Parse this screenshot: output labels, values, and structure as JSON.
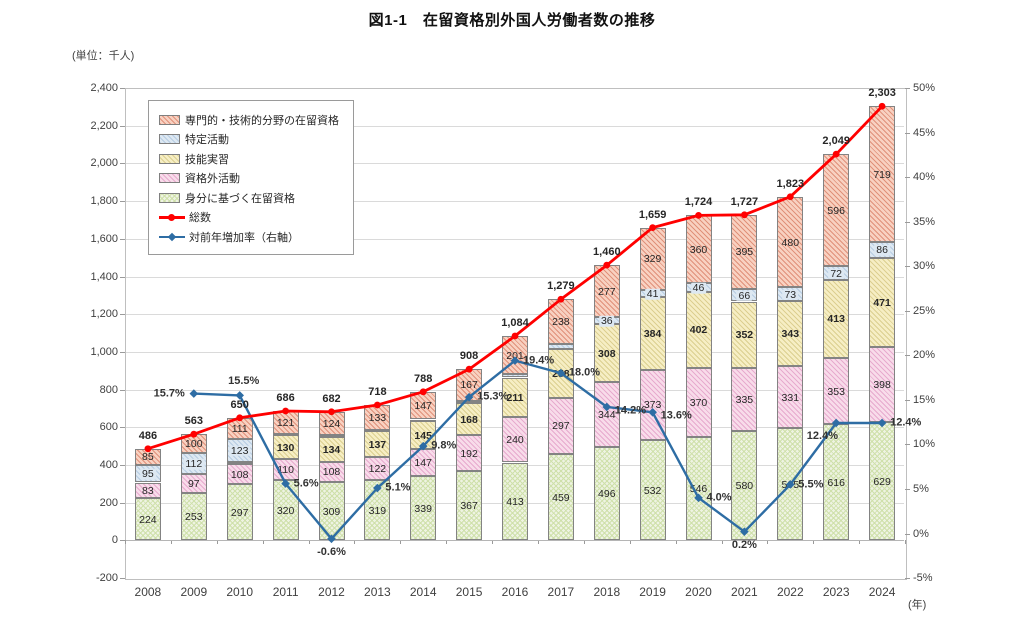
{
  "title": "図1-1　在留資格別外国人労働者数の推移",
  "legend": {
    "items": [
      {
        "key": "professional",
        "label": "専門的・技術的分野の在留資格",
        "type": "bar"
      },
      {
        "key": "designated",
        "label": "特定活動",
        "type": "bar"
      },
      {
        "key": "training",
        "label": "技能実習",
        "type": "bar"
      },
      {
        "key": "outside",
        "label": "資格外活動",
        "type": "bar"
      },
      {
        "key": "identity",
        "label": "身分に基づく在留資格",
        "type": "bar"
      },
      {
        "key": "total",
        "label": "総数",
        "type": "line"
      },
      {
        "key": "growth",
        "label": "対前年増加率（右軸）",
        "type": "line"
      }
    ]
  },
  "colors": {
    "professional_fill": "#f8d1c1",
    "professional_hatch": "#e0917a",
    "designated_fill": "#dde8f2",
    "designated_hatch": "#b7cce2",
    "training_fill": "#f6eec4",
    "training_hatch": "#dccf90",
    "outside_fill": "#f8dcea",
    "outside_hatch": "#e7abce",
    "identity_fill": "#eef3e2",
    "identity_hatch": "#cfe0ab",
    "total_line": "#ff0000",
    "growth_line": "#2e6da4",
    "grid": "#dadada",
    "plot_border": "#bfbfbf",
    "segment_border": "#838383",
    "text": "#3f3f3f"
  },
  "chart_data": {
    "type": "stacked-bar + line combo",
    "categories": [
      "2008",
      "2009",
      "2010",
      "2011",
      "2012",
      "2013",
      "2014",
      "2015",
      "2016",
      "2017",
      "2018",
      "2019",
      "2020",
      "2021",
      "2022",
      "2023",
      "2024"
    ],
    "stack_order": [
      "identity",
      "outside",
      "training",
      "designated",
      "professional"
    ],
    "series": [
      {
        "key": "identity",
        "name": "身分に基づく在留資格",
        "type": "bar",
        "values": [
          224,
          253,
          297,
          320,
          309,
          319,
          339,
          367,
          413,
          459,
          496,
          532,
          546,
          580,
          595,
          616,
          629
        ],
        "labels": [
          "224",
          "253",
          "297",
          "320",
          "309",
          "319",
          "339",
          "367",
          "413",
          "459",
          "496",
          "532",
          "546",
          "580",
          "595",
          "616",
          "629"
        ]
      },
      {
        "key": "outside",
        "name": "資格外活動",
        "type": "bar",
        "values": [
          83,
          97,
          108,
          110,
          108,
          122,
          147,
          192,
          240,
          297,
          344,
          373,
          370,
          335,
          331,
          353,
          398
        ],
        "labels": [
          "83",
          "97",
          "108",
          "110",
          "108",
          "122",
          "147",
          "192",
          "240",
          "297",
          "344",
          "373",
          "370",
          "335",
          "331",
          "353",
          "398"
        ]
      },
      {
        "key": "training",
        "name": "技能実習",
        "type": "bar",
        "values": [
          0,
          0,
          11,
          130,
          134,
          137,
          145,
          168,
          211,
          258,
          308,
          384,
          402,
          352,
          343,
          413,
          471
        ],
        "labels": [
          "",
          "",
          "",
          "130",
          "134",
          "137",
          "145",
          "168",
          "211",
          "258",
          "308",
          "384",
          "402",
          "352",
          "343",
          "413",
          "471"
        ]
      },
      {
        "key": "designated",
        "name": "特定活動",
        "type": "bar",
        "values": [
          95,
          112,
          123,
          5,
          7,
          7,
          10,
          14,
          19,
          27,
          36,
          41,
          46,
          66,
          73,
          72,
          86
        ],
        "labels": [
          "95",
          "112",
          "123",
          "",
          "",
          "",
          "",
          "",
          "",
          "",
          "36",
          "41",
          "46",
          "66",
          "73",
          "72",
          "86"
        ]
      },
      {
        "key": "professional",
        "name": "専門的・技術的分野の在留資格",
        "type": "bar",
        "values": [
          85,
          100,
          111,
          121,
          124,
          133,
          147,
          167,
          201,
          238,
          277,
          329,
          360,
          395,
          480,
          596,
          719
        ],
        "labels": [
          "85",
          "100",
          "111",
          "121",
          "124",
          "133",
          "147",
          "167",
          "201",
          "238",
          "277",
          "329",
          "360",
          "395",
          "480",
          "596",
          "719"
        ]
      },
      {
        "key": "total",
        "name": "総数",
        "type": "line",
        "axis": "left",
        "values": [
          486,
          563,
          650,
          686,
          682,
          718,
          788,
          908,
          1084,
          1279,
          1460,
          1659,
          1724,
          1727,
          1823,
          2049,
          2303
        ],
        "labels": [
          "486",
          "563",
          "650",
          "686",
          "682",
          "718",
          "788",
          "908",
          "1,084",
          "1,279",
          "1,460",
          "1,659",
          "1,724",
          "1,727",
          "1,823",
          "2,049",
          "2,303"
        ]
      },
      {
        "key": "growth",
        "name": "対前年増加率（右軸）",
        "type": "line",
        "axis": "right",
        "values": [
          null,
          15.7,
          15.5,
          5.6,
          -0.6,
          5.1,
          9.8,
          15.3,
          19.4,
          18.0,
          14.2,
          13.6,
          4.0,
          0.2,
          5.5,
          12.4,
          12.4
        ],
        "labels": [
          "",
          "15.7%",
          "15.5%",
          "5.6%",
          "-0.6%",
          "5.1%",
          "9.8%",
          "15.3%",
          "19.4%",
          "18.0%",
          "14.2%",
          "13.6%",
          "4.0%",
          "0.2%",
          "5.5%",
          "12.4%",
          "12.4%"
        ],
        "label_placement": [
          "",
          "left",
          "above",
          "right",
          "below",
          "right",
          "right",
          "right",
          "right",
          "right",
          "right-below",
          "right-below",
          "right",
          "below",
          "right",
          "below-left",
          "right"
        ]
      }
    ],
    "left_axis": {
      "title": "(単位：千人)",
      "min": -200,
      "max": 2400,
      "step": 200,
      "ticks": [
        "2,400",
        "2,200",
        "2,000",
        "1,800",
        "1,600",
        "1,400",
        "1,200",
        "1,000",
        "800",
        "600",
        "400",
        "200",
        "0",
        "-200"
      ]
    },
    "right_axis": {
      "min": -5,
      "max": 50,
      "step": 5,
      "ticks": [
        "50%",
        "45%",
        "40%",
        "35%",
        "30%",
        "25%",
        "20%",
        "15%",
        "10%",
        "5%",
        "0%",
        "-5%"
      ]
    },
    "x_axis": {
      "title": "(年)"
    },
    "grid": true,
    "legend_position": "upper-left-inside"
  }
}
